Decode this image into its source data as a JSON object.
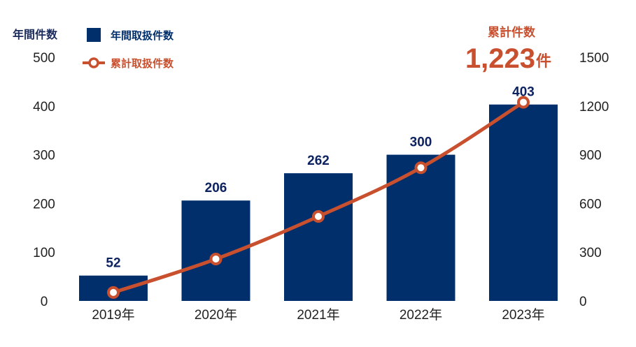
{
  "chart_data": {
    "type": "bar",
    "categories": [
      "2019年",
      "2020年",
      "2021年",
      "2022年",
      "2023年"
    ],
    "series": [
      {
        "name": "年間取扱件数",
        "type": "bar",
        "axis": "left",
        "values": [
          52,
          206,
          262,
          300,
          403
        ],
        "color": "#002f6c"
      },
      {
        "name": "累計取扱件数",
        "type": "line",
        "axis": "right",
        "values": [
          52,
          258,
          520,
          820,
          1223
        ],
        "color": "#c9502f"
      }
    ],
    "ylabel_left": "年間件数",
    "ylim_left": [
      0,
      500
    ],
    "yticks_left": [
      "0",
      "100",
      "200",
      "300",
      "400",
      "500"
    ],
    "ylim_right": [
      0,
      1500
    ],
    "yticks_right": [
      "0",
      "300",
      "600",
      "900",
      "1200",
      "1500"
    ],
    "grid": false,
    "legend_position": "top-left"
  },
  "annotation": {
    "label": "累計件数",
    "value": "1,223",
    "unit": "件"
  },
  "colors": {
    "bar": "#002f6c",
    "line": "#c9502f",
    "axis_text": "#222222",
    "title_text": "#1a2a5a"
  }
}
